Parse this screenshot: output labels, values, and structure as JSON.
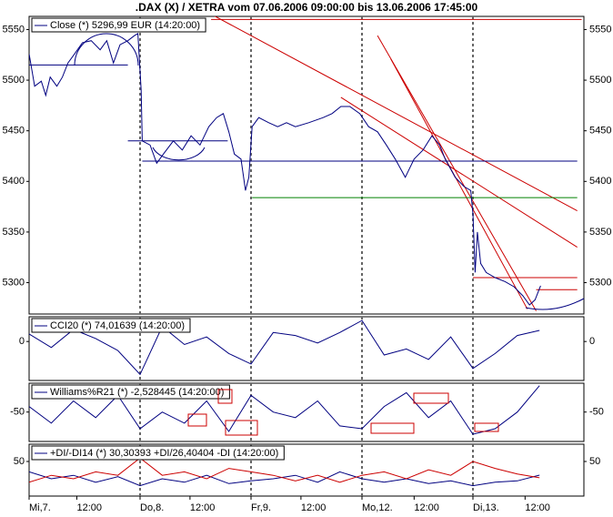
{
  "chart_data": [
    {
      "type": "line",
      "title": ".DAX (X) / XETRA vom 07.06.2006 09:00:00 bis 13.06.2006 17:45:00",
      "xlim": [
        0,
        5
      ],
      "ylim": [
        5269,
        5563
      ],
      "yticks": [
        5300,
        5350,
        5400,
        5450,
        5500,
        5550
      ],
      "vlines": [
        1,
        2,
        3,
        4
      ],
      "x": [
        0,
        0.05,
        0.11,
        0.15,
        0.19,
        0.25,
        0.3,
        0.35,
        0.41,
        0.48,
        0.56,
        0.64,
        0.7,
        0.76,
        0.82,
        0.89,
        0.95,
        0.98,
        1.01,
        1.02,
        1.09,
        1.15,
        1.21,
        1.3,
        1.38,
        1.46,
        1.54,
        1.62,
        1.69,
        1.75,
        1.8,
        1.85,
        1.91,
        1.95,
        1.98,
        2.01,
        2.07,
        2.16,
        2.24,
        2.32,
        2.4,
        2.52,
        2.65,
        2.73,
        2.81,
        2.89,
        2.98,
        3.06,
        3.14,
        3.22,
        3.3,
        3.39,
        3.47,
        3.55,
        3.63,
        3.7,
        3.75,
        3.84,
        3.92,
        3.98,
        4.0,
        4.02,
        4.04,
        4.07,
        4.12,
        4.2,
        4.29,
        4.37,
        4.45,
        4.51,
        4.56,
        4.61
      ],
      "series": [
        {
          "name": "Close (*) 5296,99 EUR (14:20:00)",
          "color": "#000080",
          "values": [
            5526,
            5494,
            5499,
            5485,
            5503,
            5494,
            5503,
            5517,
            5526,
            5537,
            5539,
            5530,
            5539,
            5517,
            5535,
            5539,
            5544,
            5546,
            5490,
            5440,
            5436,
            5418,
            5427,
            5440,
            5431,
            5445,
            5436,
            5454,
            5463,
            5467,
            5449,
            5427,
            5422,
            5391,
            5404,
            5454,
            5463,
            5458,
            5454,
            5458,
            5454,
            5458,
            5463,
            5467,
            5474,
            5474,
            5467,
            5454,
            5449,
            5436,
            5422,
            5404,
            5422,
            5431,
            5445,
            5436,
            5422,
            5404,
            5395,
            5391,
            5368,
            5310,
            5350,
            5319,
            5310,
            5305,
            5301,
            5296,
            5287,
            5278,
            5283,
            5297
          ]
        }
      ],
      "lines": [
        {
          "x": [
            1.64,
            4.98
          ],
          "y": [
            5560,
            5560
          ],
          "color": "#cc0000"
        },
        {
          "x": [
            1.66,
            4.94
          ],
          "y": [
            5564,
            5371
          ],
          "color": "#cc0000"
        },
        {
          "x": [
            2.81,
            4.94
          ],
          "y": [
            5483,
            5335
          ],
          "color": "#cc0000"
        },
        {
          "x": [
            3.14,
            4.57
          ],
          "y": [
            5544,
            5272
          ],
          "color": "#cc0000"
        },
        {
          "x": [
            3.26,
            4.49
          ],
          "y": [
            5521,
            5274
          ],
          "color": "#cc0000"
        },
        {
          "x": [
            4.0,
            4.94
          ],
          "y": [
            5305,
            5305
          ],
          "color": "#cc0000"
        },
        {
          "x": [
            4.57,
            4.94
          ],
          "y": [
            5293,
            5293
          ],
          "color": "#cc0000"
        },
        {
          "x": [
            0.0,
            0.89
          ],
          "y": [
            5515,
            5515
          ],
          "color": "#000080"
        },
        {
          "x": [
            0.89,
            1.79
          ],
          "y": [
            5440,
            5440
          ],
          "color": "#000080"
        },
        {
          "x": [
            1.02,
            4.94
          ],
          "y": [
            5420,
            5420
          ],
          "color": "#000080"
        },
        {
          "x": [
            2.01,
            4.94
          ],
          "y": [
            5384,
            5384
          ],
          "color": "#008000"
        }
      ]
    },
    {
      "type": "line",
      "xlim": [
        0,
        5
      ],
      "ylim": [
        -260,
        165
      ],
      "yticks": [
        0
      ],
      "x": [
        0,
        0.2,
        0.4,
        0.6,
        0.8,
        1.0,
        1.2,
        1.4,
        1.6,
        1.8,
        2.0,
        2.2,
        2.4,
        2.6,
        2.8,
        3.0,
        3.2,
        3.4,
        3.6,
        3.8,
        4.0,
        4.2,
        4.4,
        4.6
      ],
      "series": [
        {
          "name": "CCI20 (*) 74,01639 (14:20:00)",
          "color": "#000080",
          "values": [
            50,
            -40,
            80,
            20,
            -60,
            -220,
            100,
            -20,
            30,
            -80,
            -150,
            60,
            40,
            -10,
            60,
            140,
            -90,
            -50,
            -120,
            30,
            -180,
            -80,
            40,
            74
          ]
        }
      ]
    },
    {
      "type": "line",
      "xlim": [
        0,
        5
      ],
      "ylim": [
        -103,
        2
      ],
      "yticks": [
        -50
      ],
      "x": [
        0,
        0.2,
        0.4,
        0.6,
        0.8,
        1.0,
        1.2,
        1.4,
        1.6,
        1.8,
        2.0,
        2.2,
        2.4,
        2.6,
        2.8,
        3.0,
        3.2,
        3.4,
        3.6,
        3.8,
        4.0,
        4.2,
        4.4,
        4.6
      ],
      "series": [
        {
          "name": "Williams%R21 (*) -2,528445 (14:20:00)",
          "color": "#000080",
          "values": [
            -40,
            -70,
            -30,
            -60,
            -20,
            -80,
            -50,
            -70,
            -30,
            -85,
            -20,
            -50,
            -60,
            -30,
            -75,
            -80,
            -40,
            -15,
            -60,
            -30,
            -90,
            -80,
            -50,
            -2.5
          ]
        }
      ]
    },
    {
      "type": "line",
      "xlim": [
        0,
        5
      ],
      "ylim": [
        0,
        75
      ],
      "yticks": [
        50
      ],
      "legend": "+DI/-DI14 (*) 30,30393 +DI/26,40404 -DI (14:20:00)",
      "xticks": [
        {
          "value": 0,
          "label": "Mi,7."
        },
        {
          "value": 0.43,
          "label": "12:00"
        },
        {
          "value": 1,
          "label": "Do,8."
        },
        {
          "value": 1.45,
          "label": "12:00"
        },
        {
          "value": 2,
          "label": "Fr,9."
        },
        {
          "value": 2.45,
          "label": "12:00"
        },
        {
          "value": 3,
          "label": "Mo,12."
        },
        {
          "value": 3.47,
          "label": "12:00"
        },
        {
          "value": 4,
          "label": "Di,13."
        },
        {
          "value": 4.47,
          "label": "12:00"
        }
      ],
      "x": [
        0,
        0.2,
        0.4,
        0.6,
        0.8,
        1.0,
        1.2,
        1.4,
        1.6,
        1.8,
        2.0,
        2.2,
        2.4,
        2.6,
        2.8,
        3.0,
        3.2,
        3.4,
        3.6,
        3.8,
        4.0,
        4.2,
        4.4,
        4.6
      ],
      "series": [
        {
          "color": "#000080",
          "values": [
            35,
            25,
            30,
            20,
            28,
            15,
            25,
            20,
            30,
            18,
            22,
            25,
            30,
            20,
            35,
            25,
            20,
            25,
            18,
            22,
            15,
            20,
            22,
            30.3
          ]
        },
        {
          "color": "#cc0000",
          "values": [
            20,
            30,
            25,
            35,
            30,
            55,
            30,
            35,
            25,
            40,
            35,
            30,
            22,
            30,
            20,
            30,
            35,
            25,
            38,
            30,
            50,
            40,
            32,
            26.4
          ]
        }
      ]
    }
  ]
}
